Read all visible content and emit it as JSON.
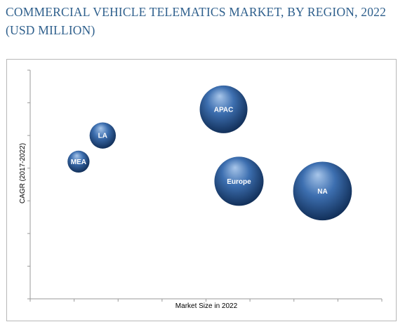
{
  "chart_data": {
    "type": "bubble",
    "title": "COMMERCIAL VEHICLE TELEMATICS MARKET, BY REGION, 2022 (USD MILLION)",
    "xlabel": "Market Size in 2022",
    "ylabel": "CAGR (2017-2022)",
    "xlim": [
      0,
      16
    ],
    "ylim": [
      0,
      7
    ],
    "grid": false,
    "x_ticks": 8,
    "y_ticks": 7,
    "series": [
      {
        "label": "APAC",
        "x": 8.8,
        "y": 5.8,
        "size": 1.0
      },
      {
        "label": "LA",
        "x": 3.3,
        "y": 5.0,
        "size": 0.55
      },
      {
        "label": "MEA",
        "x": 2.2,
        "y": 4.2,
        "size": 0.46
      },
      {
        "label": "Europe",
        "x": 9.5,
        "y": 3.6,
        "size": 1.03
      },
      {
        "label": "NA",
        "x": 13.3,
        "y": 3.3,
        "size": 1.23
      }
    ],
    "colors": {
      "bubble_light": "#a8c6ea",
      "bubble_mid": "#3d6fb0",
      "bubble_dark": "#0e2a52"
    }
  }
}
